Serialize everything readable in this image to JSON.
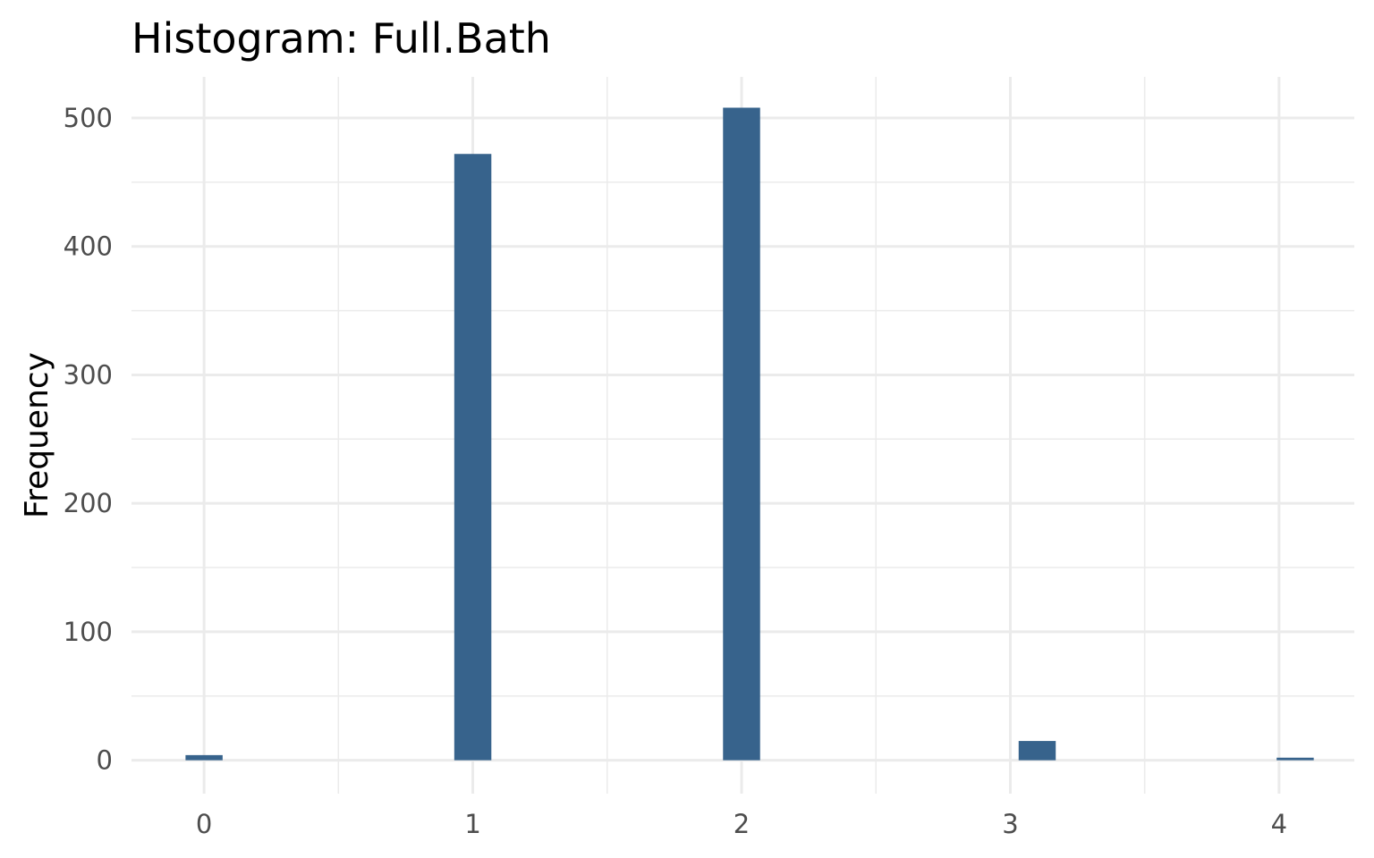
{
  "chart_data": {
    "type": "bar",
    "title": "Histogram:  Full.Bath",
    "xlabel": "",
    "ylabel": "Frequency",
    "bar_color": "#37638c",
    "x_ticks": [
      "0",
      "1",
      "2",
      "3",
      "4"
    ],
    "y_ticks": [
      "0",
      "100",
      "200",
      "300",
      "400",
      "500"
    ],
    "xlim": [
      -0.27,
      4.28
    ],
    "ylim": [
      -26,
      532
    ],
    "bin_width": 0.138,
    "bars": [
      {
        "x": 0.0,
        "value": 4
      },
      {
        "x": 1.0,
        "value": 472
      },
      {
        "x": 2.0,
        "value": 508
      },
      {
        "x": 3.1,
        "value": 15
      },
      {
        "x": 4.06,
        "value": 2
      }
    ],
    "grid": true,
    "legend": "none"
  }
}
